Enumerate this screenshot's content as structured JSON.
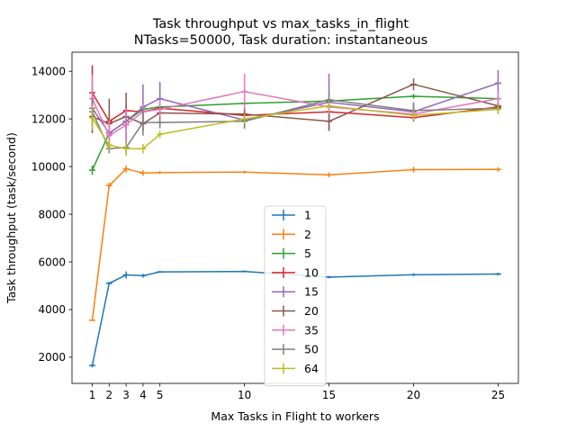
{
  "chart_data": {
    "type": "line",
    "title": "Task throughput vs max_tasks_in_flight",
    "subtitle": "NTasks=50000, Task duration: instantaneous",
    "xlabel": "Max Tasks in Flight to workers",
    "ylabel": "Task throughput (task/second)",
    "x": [
      1,
      2,
      3,
      4,
      5,
      10,
      15,
      20,
      25
    ],
    "xticks": [
      1,
      2,
      3,
      4,
      5,
      10,
      15,
      20,
      25
    ],
    "xlim": [
      -0.2,
      26.2
    ],
    "yticks": [
      2000,
      4000,
      6000,
      8000,
      10000,
      12000,
      14000
    ],
    "ylim": [
      900,
      14800
    ],
    "grid": false,
    "legend_position": "lower-center",
    "series": [
      {
        "name": "1",
        "color": "#1f77b4",
        "values": [
          1650,
          5100,
          5450,
          5420,
          5580,
          5600,
          5360,
          5460,
          5490
        ],
        "errors": [
          80,
          60,
          150,
          80,
          30,
          40,
          50,
          60,
          60
        ]
      },
      {
        "name": "2",
        "color": "#ff7f0e",
        "values": [
          3550,
          9200,
          9900,
          9730,
          9750,
          9770,
          9650,
          9870,
          9880
        ],
        "errors": [
          40,
          120,
          150,
          120,
          60,
          60,
          100,
          120,
          100
        ]
      },
      {
        "name": "5",
        "color": "#2ca02c",
        "values": [
          9850,
          11400,
          11900,
          12400,
          12500,
          12650,
          12750,
          12950,
          12850
        ],
        "errors": [
          200,
          300,
          200,
          150,
          100,
          100,
          100,
          100,
          100
        ]
      },
      {
        "name": "10",
        "color": "#d62728",
        "values": [
          13100,
          11900,
          12350,
          12300,
          12450,
          12150,
          12300,
          12050,
          12500
        ],
        "errors": [
          1150,
          300,
          150,
          150,
          120,
          100,
          100,
          150,
          150
        ]
      },
      {
        "name": "15",
        "color": "#9467bd",
        "values": [
          12450,
          11400,
          11900,
          12500,
          12850,
          11950,
          12700,
          12300,
          13500
        ],
        "errors": [
          500,
          600,
          800,
          950,
          700,
          350,
          1200,
          400,
          550
        ]
      },
      {
        "name": "20",
        "color": "#8c564b",
        "values": [
          12100,
          11800,
          12100,
          11800,
          12250,
          12200,
          11900,
          13450,
          12550
        ],
        "errors": [
          700,
          1050,
          1000,
          300,
          400,
          300,
          400,
          250,
          200
        ]
      },
      {
        "name": "35",
        "color": "#e377c2",
        "values": [
          12850,
          11300,
          11750,
          12300,
          12400,
          13150,
          12500,
          12200,
          12850
        ],
        "errors": [
          1000,
          650,
          700,
          350,
          400,
          750,
          300,
          250,
          300
        ]
      },
      {
        "name": "50",
        "color": "#7f7f7f",
        "values": [
          12300,
          10750,
          10800,
          11850,
          11850,
          11900,
          12800,
          12350,
          12450
        ],
        "errors": [
          600,
          200,
          300,
          550,
          250,
          300,
          300,
          300,
          200
        ]
      },
      {
        "name": "64",
        "color": "#bcbd22",
        "values": [
          12050,
          10900,
          10750,
          10750,
          11350,
          12000,
          12550,
          12150,
          12400
        ],
        "errors": [
          500,
          200,
          300,
          200,
          150,
          200,
          200,
          200,
          200
        ]
      }
    ]
  }
}
